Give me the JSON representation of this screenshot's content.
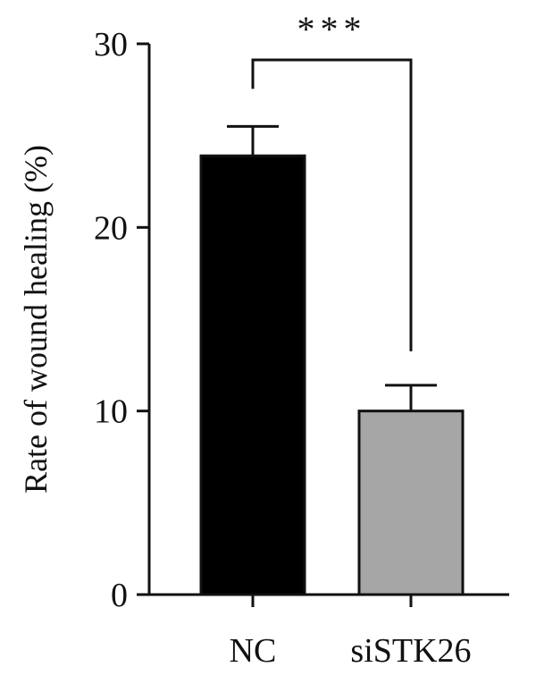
{
  "chart_data": {
    "type": "bar",
    "categories": [
      "NC",
      "siSTK26"
    ],
    "values": [
      23.9,
      10.0
    ],
    "errors": [
      1.6,
      1.4
    ],
    "colors": [
      "#000000",
      "#a6a6a6"
    ],
    "ylabel": "Rate of wound healing (%)",
    "xlabel": "",
    "ylim": [
      0,
      30
    ],
    "yticks": [
      0,
      10,
      20,
      30
    ],
    "significance": {
      "label": "***",
      "between": [
        0,
        1
      ]
    },
    "grid": false,
    "legend": "none"
  }
}
